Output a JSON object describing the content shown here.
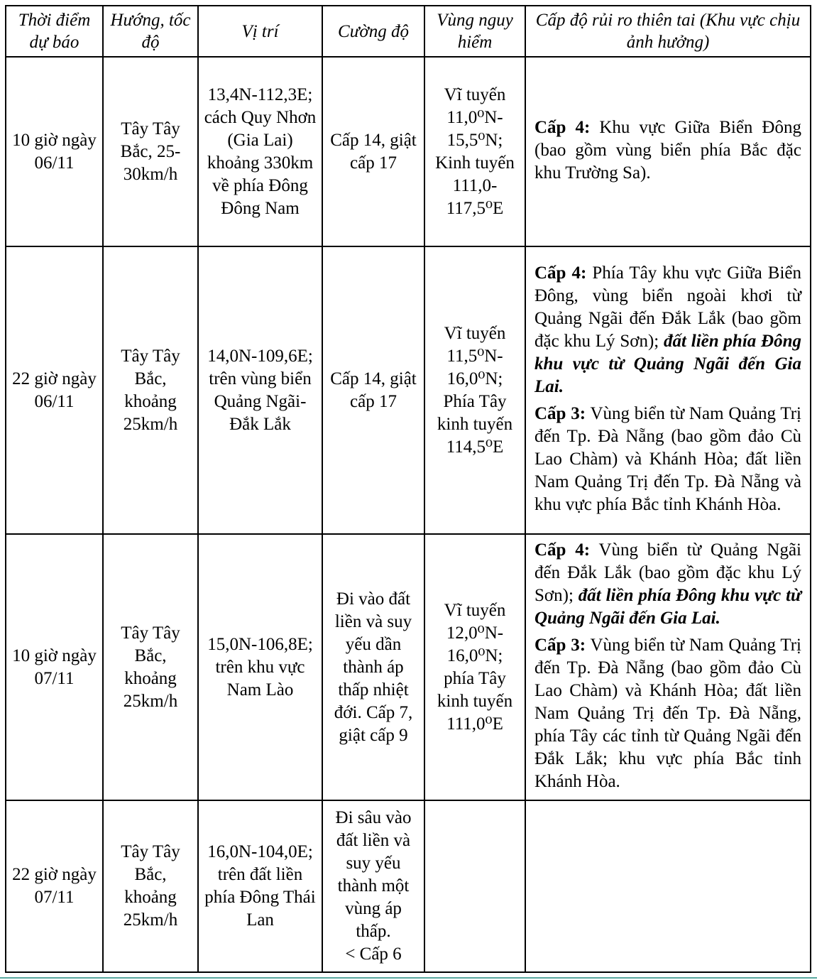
{
  "table": {
    "header": [
      "Thời điểm dự báo",
      "Hướng, tốc độ",
      "Vị trí",
      "Cường độ",
      "Vùng nguy hiểm",
      "Cấp độ rủi ro thiên tai (Khu vực chịu ảnh hưởng)"
    ],
    "rows": [
      {
        "time": "10 giờ ngày 06/11",
        "direction": "Tây Tây Bắc, 25-30km/h",
        "position": "13,4N-112,3E; cách Quy Nhơn (Gia Lai) khoảng 330km về phía Đông Đông Nam",
        "intensity": [
          "Cấp 14, giật cấp 17"
        ],
        "danger_zone": "Vĩ tuyến 11,0⁰N-15,5⁰N; Kinh tuyến 111,0-117,5⁰E",
        "risk": [
          {
            "level": "Cấp 4:",
            "text": "Khu vực Giữa Biển Đông (bao gồm vùng biển phía Bắc đặc khu Trường Sa)."
          }
        ]
      },
      {
        "time": "22 giờ ngày 06/11",
        "direction": "Tây Tây Bắc, khoảng 25km/h",
        "position": "14,0N-109,6E; trên vùng biển Quảng Ngãi-Đắk Lắk",
        "intensity": [
          "Cấp 14, giật cấp 17"
        ],
        "danger_zone": "Vĩ tuyến 11,5⁰N-16,0⁰N; Phía Tây kinh tuyến 114,5⁰E",
        "risk": [
          {
            "level": "Cấp 4:",
            "text": "Phía Tây khu vực Giữa Biển Đông, vùng biển ngoài khơi từ Quảng Ngãi đến Đắk Lắk (bao gồm đặc khu Lý Sơn);",
            "emphasis": "đất liền phía Đông khu vực từ Quảng Ngãi đến Gia Lai."
          },
          {
            "level": "Cấp 3:",
            "text": "Vùng biển từ Nam Quảng Trị đến Tp. Đà Nẵng (bao gồm đảo Cù Lao Chàm) và Khánh Hòa; đất liền Nam Quảng Trị đến Tp. Đà Nẵng và khu vực phía Bắc tỉnh Khánh Hòa."
          }
        ]
      },
      {
        "time": "10 giờ ngày 07/11",
        "direction": "Tây Tây Bắc, khoảng 25km/h",
        "position": "15,0N-106,8E; trên khu vực Nam Lào",
        "intensity": [
          "Đi vào đất liền và suy yếu dần thành áp thấp nhiệt đới. Cấp 7, giật cấp 9"
        ],
        "danger_zone": "Vĩ tuyến 12,0⁰N-16,0⁰N; phía Tây kinh tuyến 111,0⁰E",
        "risk": [
          {
            "level": "Cấp 4:",
            "text": "Vùng biển từ Quảng Ngãi đến Đắk Lắk (bao gồm đặc khu Lý Sơn);",
            "emphasis": "đất liền phía Đông khu vực từ Quảng Ngãi đến Gia Lai."
          },
          {
            "level": "Cấp 3:",
            "text": "Vùng biển từ Nam Quảng Trị đến Tp. Đà Nẵng (bao gồm đảo Cù Lao Chàm) và Khánh Hòa; đất liền Nam Quảng Trị đến Tp. Đà Nẵng, phía Tây các tỉnh từ Quảng Ngãi đến Đắk Lắk; khu vực phía Bắc tỉnh Khánh Hòa."
          }
        ]
      },
      {
        "time": "22 giờ ngày 07/11",
        "direction": "Tây Tây Bắc, khoảng 25km/h",
        "position": "16,0N-104,0E; trên đất liền phía Đông Thái Lan",
        "intensity": [
          "Đi sâu vào đất liền và suy yếu thành một vùng áp thấp.",
          "< Cấp 6"
        ],
        "danger_zone": null
      }
    ]
  }
}
